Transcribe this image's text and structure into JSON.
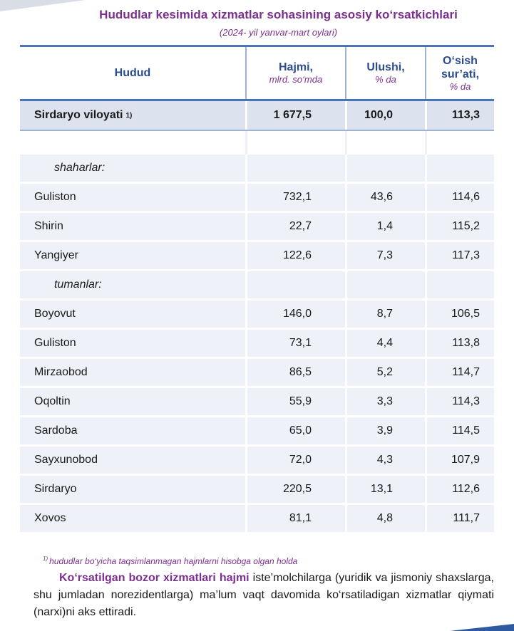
{
  "title": "Hududlar kesimida xizmatlar sohasining asosiy ko‘rsatkichlari",
  "subtitle": "(2024- yil yanvar-mart oylari)",
  "headers": {
    "region": "Hudud",
    "volume": "Hajmi,",
    "volume_unit": "mlrd. so‘mda",
    "share": "Ulushi,",
    "share_unit": "% da",
    "growth_1": "O‘sish",
    "growth_2": "sur’ati,",
    "growth_unit": "% da"
  },
  "total": {
    "name": "Sirdaryo viloyati",
    "note": "1)",
    "volume": "1 677,5",
    "share": "100,0",
    "growth": "113,3"
  },
  "cities_label": "shaharlar:",
  "cities": [
    {
      "name": "Guliston",
      "volume": "732,1",
      "share": "43,6",
      "growth": "114,6"
    },
    {
      "name": "Shirin",
      "volume": "22,7",
      "share": "1,4",
      "growth": "115,2"
    },
    {
      "name": "Yangiyer",
      "volume": "122,6",
      "share": "7,3",
      "growth": "117,3"
    }
  ],
  "districts_label": "tumanlar:",
  "districts": [
    {
      "name": "Boyovut",
      "volume": "146,0",
      "share": "8,7",
      "growth": "106,5"
    },
    {
      "name": "Guliston",
      "volume": "73,1",
      "share": "4,4",
      "growth": "113,8"
    },
    {
      "name": "Mirzaobod",
      "volume": "86,5",
      "share": "5,2",
      "growth": "114,7"
    },
    {
      "name": "Oqoltin",
      "volume": "55,9",
      "share": "3,3",
      "growth": "114,3"
    },
    {
      "name": "Sardoba",
      "volume": "65,0",
      "share": "3,9",
      "growth": "114,5"
    },
    {
      "name": "Sayxunobod",
      "volume": "72,0",
      "share": "4,3",
      "growth": "107,9"
    },
    {
      "name": "Sirdaryo",
      "volume": "220,5",
      "share": "13,1",
      "growth": "112,6"
    },
    {
      "name": "Xovos",
      "volume": "81,1",
      "share": "4,8",
      "growth": "111,7"
    }
  ],
  "footnote": {
    "mark": "1)",
    "text": "hududlar  bo‘yicha taqsimlanmagan hajmlarni hisobga olgan holda"
  },
  "paragraph": {
    "lead": "Ko‘rsatilgan bozor xizmatlari hajmi",
    "rest": " iste’molchilarga (yuridik va jismoniy shaxslarga, shu jumladan norezidentlarga) ma’lum vaqt davomida ko‘rsatiladigan xizmatlar qiymati (narxi)ni aks ettiradi."
  },
  "colors": {
    "accent": "#7b2f8e",
    "header_text": "#2b4d8f",
    "rule": "#4a73b8",
    "row_bg": "#eef1f7"
  }
}
